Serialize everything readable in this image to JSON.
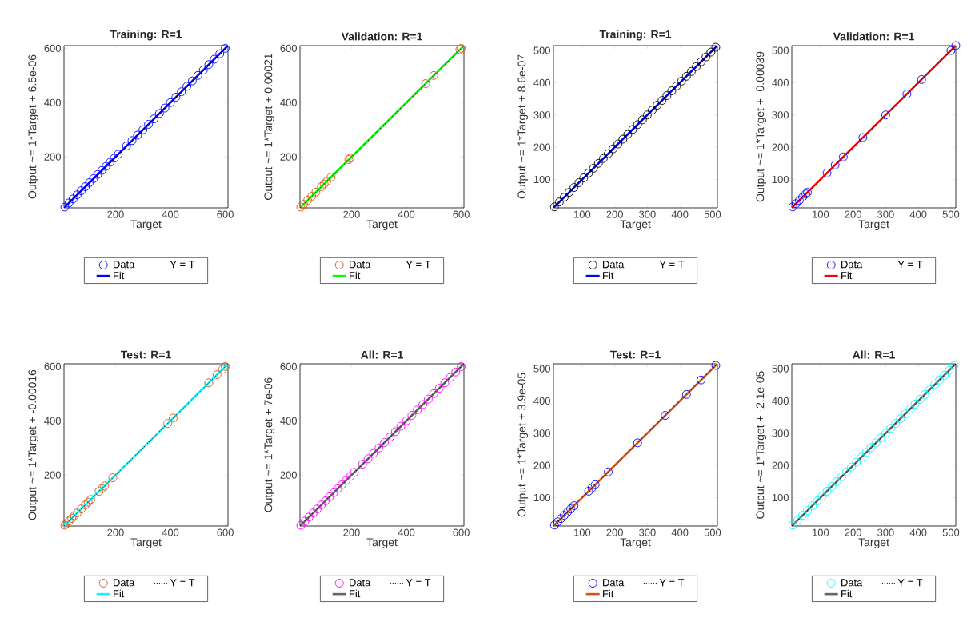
{
  "chart_data": [
    {
      "type": "scatter",
      "title": "Training: R=1",
      "xlabel": "Target",
      "ylabel": "Output ~= 1*Target + 6.5e-06",
      "xlim": [
        12,
        610
      ],
      "ylim": [
        12,
        610
      ],
      "xticks": [
        200,
        400,
        600
      ],
      "yticks": [
        200,
        400,
        600
      ],
      "legend": "bottom",
      "series": [
        {
          "name": "Data",
          "type": "scatter",
          "marker": "circle",
          "color": "#0000ff",
          "x": [
            15,
            30,
            45,
            60,
            75,
            90,
            105,
            120,
            135,
            150,
            165,
            180,
            195,
            210,
            240,
            260,
            280,
            300,
            320,
            340,
            360,
            380,
            400,
            420,
            440,
            460,
            480,
            500,
            520,
            540,
            560,
            580,
            600
          ],
          "values": [
            15,
            30,
            45,
            60,
            75,
            90,
            105,
            120,
            135,
            150,
            165,
            180,
            195,
            210,
            240,
            260,
            280,
            300,
            320,
            340,
            360,
            380,
            400,
            420,
            440,
            460,
            480,
            500,
            520,
            540,
            560,
            580,
            600
          ]
        },
        {
          "name": "Y = T",
          "type": "line",
          "line_style": "dotted",
          "color": "#000000",
          "x": [
            12,
            610
          ],
          "values": [
            12,
            610
          ]
        },
        {
          "name": "Fit",
          "type": "line",
          "line_style": "solid",
          "color": "#0000ff",
          "x": [
            12,
            610
          ],
          "values": [
            12,
            610
          ]
        }
      ]
    },
    {
      "type": "scatter",
      "title": "Validation: R=1",
      "xlabel": "Target",
      "ylabel": "Output ~= 1*Target + 0.00021",
      "xlim": [
        12,
        610
      ],
      "ylim": [
        12,
        610
      ],
      "xticks": [
        200,
        400,
        600
      ],
      "yticks": [
        200,
        400,
        600
      ],
      "legend": "bottom",
      "series": [
        {
          "name": "Data",
          "type": "scatter",
          "marker": "circle",
          "color": "#d95319",
          "x": [
            15,
            25,
            40,
            55,
            70,
            90,
            100,
            110,
            125,
            190,
            195,
            470,
            500,
            595,
            600
          ],
          "values": [
            15,
            25,
            40,
            55,
            70,
            90,
            100,
            110,
            125,
            190,
            195,
            470,
            500,
            595,
            600
          ]
        },
        {
          "name": "Y = T",
          "type": "line",
          "line_style": "dotted",
          "color": "#000000",
          "x": [
            12,
            610
          ],
          "values": [
            12,
            610
          ]
        },
        {
          "name": "Fit",
          "type": "line",
          "line_style": "solid",
          "color": "#00ff00",
          "x": [
            12,
            610
          ],
          "values": [
            12,
            610
          ]
        }
      ]
    },
    {
      "type": "scatter",
      "title": "Training: R=1",
      "xlabel": "Target",
      "ylabel": "Output ~= 1*Target + 8.6e-07",
      "xlim": [
        12,
        515
      ],
      "ylim": [
        12,
        515
      ],
      "xticks": [
        100,
        200,
        300,
        400,
        500
      ],
      "yticks": [
        100,
        200,
        300,
        400,
        500
      ],
      "legend": "bottom",
      "series": [
        {
          "name": "Data",
          "type": "scatter",
          "marker": "circle",
          "color": "#000000",
          "x": [
            15,
            30,
            45,
            60,
            75,
            90,
            105,
            120,
            135,
            150,
            165,
            180,
            195,
            210,
            225,
            240,
            255,
            270,
            285,
            300,
            315,
            330,
            345,
            360,
            375,
            390,
            405,
            420,
            435,
            450,
            465,
            480,
            495,
            510
          ],
          "values": [
            15,
            30,
            45,
            60,
            75,
            90,
            105,
            120,
            135,
            150,
            165,
            180,
            195,
            210,
            225,
            240,
            255,
            270,
            285,
            300,
            315,
            330,
            345,
            360,
            375,
            390,
            405,
            420,
            435,
            450,
            465,
            480,
            495,
            510
          ]
        },
        {
          "name": "Y = T",
          "type": "line",
          "line_style": "dotted",
          "color": "#000000",
          "x": [
            12,
            515
          ],
          "values": [
            12,
            515
          ]
        },
        {
          "name": "Fit",
          "type": "line",
          "line_style": "solid",
          "color": "#0000ff",
          "x": [
            12,
            515
          ],
          "values": [
            12,
            515
          ]
        }
      ]
    },
    {
      "type": "scatter",
      "title": "Validation: R=1",
      "xlabel": "Target",
      "ylabel": "Output ~= 1*Target + -0.00039",
      "xlim": [
        12,
        515
      ],
      "ylim": [
        12,
        515
      ],
      "xticks": [
        100,
        200,
        300,
        400,
        500
      ],
      "yticks": [
        100,
        200,
        300,
        400,
        500
      ],
      "legend": "bottom",
      "series": [
        {
          "name": "Data",
          "type": "scatter",
          "marker": "circle",
          "color": "#0000ff",
          "x": [
            15,
            25,
            35,
            45,
            55,
            60,
            120,
            145,
            170,
            230,
            300,
            365,
            410,
            500,
            515
          ],
          "values": [
            15,
            25,
            35,
            45,
            55,
            60,
            120,
            145,
            170,
            230,
            300,
            365,
            410,
            500,
            515
          ]
        },
        {
          "name": "Y = T",
          "type": "line",
          "line_style": "dotted",
          "color": "#000000",
          "x": [
            12,
            515
          ],
          "values": [
            12,
            515
          ]
        },
        {
          "name": "Fit",
          "type": "line",
          "line_style": "solid",
          "color": "#ff0000",
          "x": [
            12,
            515
          ],
          "values": [
            12,
            515
          ]
        }
      ]
    },
    {
      "type": "scatter",
      "title": "Test: R=1",
      "xlabel": "Target",
      "ylabel": "Output ~= 1*Target + -0.00016",
      "xlim": [
        12,
        610
      ],
      "ylim": [
        12,
        610
      ],
      "xticks": [
        200,
        400,
        600
      ],
      "yticks": [
        200,
        400,
        600
      ],
      "legend": "bottom",
      "series": [
        {
          "name": "Data",
          "type": "scatter",
          "marker": "circle",
          "color": "#d95319",
          "x": [
            15,
            20,
            30,
            40,
            50,
            60,
            75,
            90,
            100,
            110,
            140,
            150,
            160,
            190,
            390,
            410,
            540,
            570,
            590,
            600
          ],
          "values": [
            15,
            20,
            30,
            40,
            50,
            60,
            75,
            90,
            100,
            110,
            140,
            150,
            160,
            190,
            390,
            410,
            540,
            570,
            590,
            600
          ]
        },
        {
          "name": "Y = T",
          "type": "line",
          "line_style": "dotted",
          "color": "#000000",
          "x": [
            12,
            610
          ],
          "values": [
            12,
            610
          ]
        },
        {
          "name": "Fit",
          "type": "line",
          "line_style": "solid",
          "color": "#00ffff",
          "x": [
            12,
            610
          ],
          "values": [
            12,
            610
          ]
        }
      ]
    },
    {
      "type": "scatter",
      "title": "All: R=1",
      "xlabel": "Target",
      "ylabel": "Output ~= 1*Target + 7e-06",
      "xlim": [
        12,
        610
      ],
      "ylim": [
        12,
        610
      ],
      "xticks": [
        200,
        400,
        600
      ],
      "yticks": [
        200,
        400,
        600
      ],
      "legend": "bottom",
      "series": [
        {
          "name": "Data",
          "type": "scatter",
          "marker": "circle",
          "color": "#ff00ff",
          "x": [
            15,
            30,
            45,
            60,
            75,
            90,
            105,
            120,
            135,
            150,
            165,
            180,
            195,
            210,
            240,
            260,
            280,
            300,
            320,
            340,
            360,
            380,
            400,
            420,
            440,
            460,
            480,
            500,
            520,
            540,
            560,
            580,
            600
          ],
          "values": [
            15,
            30,
            45,
            60,
            75,
            90,
            105,
            120,
            135,
            150,
            165,
            180,
            195,
            210,
            240,
            260,
            280,
            300,
            320,
            340,
            360,
            380,
            400,
            420,
            440,
            460,
            480,
            500,
            520,
            540,
            560,
            580,
            600
          ]
        },
        {
          "name": "Y = T",
          "type": "line",
          "line_style": "dotted",
          "color": "#000000",
          "x": [
            12,
            610
          ],
          "values": [
            12,
            610
          ]
        },
        {
          "name": "Fit",
          "type": "line",
          "line_style": "solid",
          "color": "#666666",
          "x": [
            12,
            610
          ],
          "values": [
            12,
            610
          ]
        }
      ]
    },
    {
      "type": "scatter",
      "title": "Test: R=1",
      "xlabel": "Target",
      "ylabel": "Output ~= 1*Target + 3.9e-05",
      "xlim": [
        12,
        515
      ],
      "ylim": [
        12,
        515
      ],
      "xticks": [
        100,
        200,
        300,
        400,
        500
      ],
      "yticks": [
        100,
        200,
        300,
        400,
        500
      ],
      "legend": "bottom",
      "series": [
        {
          "name": "Data",
          "type": "scatter",
          "marker": "circle",
          "color": "#0000ff",
          "x": [
            15,
            25,
            35,
            45,
            55,
            65,
            75,
            120,
            130,
            140,
            180,
            270,
            355,
            420,
            465,
            510
          ],
          "values": [
            15,
            25,
            35,
            45,
            55,
            65,
            75,
            120,
            130,
            140,
            180,
            270,
            355,
            420,
            465,
            510
          ]
        },
        {
          "name": "Y = T",
          "type": "line",
          "line_style": "dotted",
          "color": "#000000",
          "x": [
            12,
            515
          ],
          "values": [
            12,
            515
          ]
        },
        {
          "name": "Fit",
          "type": "line",
          "line_style": "solid",
          "color": "#d95319",
          "x": [
            12,
            515
          ],
          "values": [
            12,
            515
          ]
        }
      ]
    },
    {
      "type": "scatter",
      "title": "All: R=1",
      "xlabel": "Target",
      "ylabel": "Output ~= 1*Target + -2.1e-05",
      "xlim": [
        12,
        515
      ],
      "ylim": [
        12,
        515
      ],
      "xticks": [
        100,
        200,
        300,
        400,
        500
      ],
      "yticks": [
        100,
        200,
        300,
        400,
        500
      ],
      "legend": "bottom",
      "series": [
        {
          "name": "Data",
          "type": "scatter",
          "marker": "circle",
          "color": "#00ffff",
          "x": [
            15,
            30,
            45,
            60,
            75,
            90,
            105,
            120,
            135,
            150,
            165,
            180,
            195,
            210,
            225,
            240,
            255,
            270,
            285,
            300,
            315,
            330,
            345,
            360,
            375,
            390,
            405,
            420,
            435,
            450,
            465,
            480,
            495,
            510
          ],
          "values": [
            15,
            30,
            45,
            60,
            75,
            90,
            105,
            120,
            135,
            150,
            165,
            180,
            195,
            210,
            225,
            240,
            255,
            270,
            285,
            300,
            315,
            330,
            345,
            360,
            375,
            390,
            405,
            420,
            435,
            450,
            465,
            480,
            495,
            510
          ]
        },
        {
          "name": "Y = T",
          "type": "line",
          "line_style": "dotted",
          "color": "#000000",
          "x": [
            12,
            515
          ],
          "values": [
            12,
            515
          ]
        },
        {
          "name": "Fit",
          "type": "line",
          "line_style": "solid",
          "color": "#666666",
          "x": [
            12,
            515
          ],
          "values": [
            12,
            515
          ]
        }
      ]
    }
  ]
}
